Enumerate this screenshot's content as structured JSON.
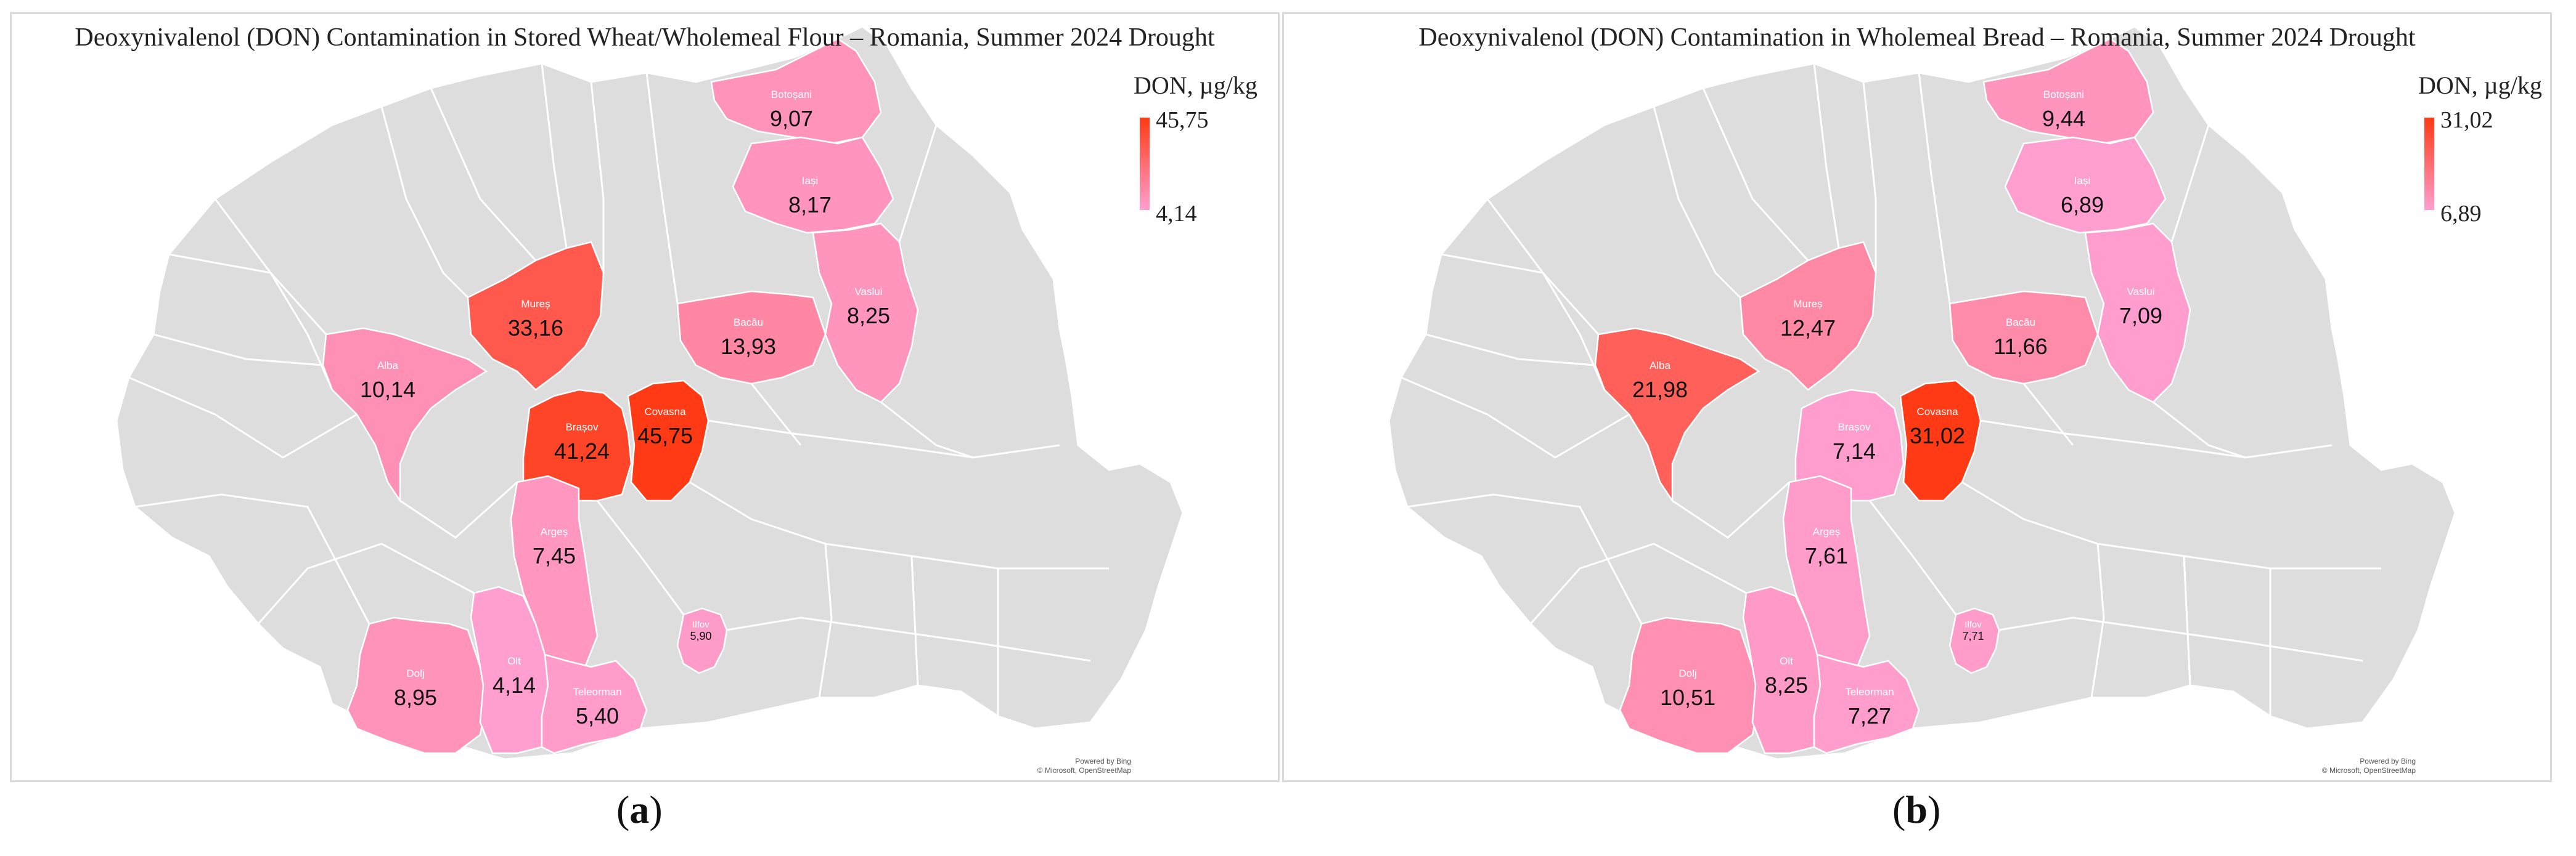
{
  "panels": [
    {
      "title": "Deoxynivalenol (DON) Contamination in Stored Wheat/Wholemeal Flour – Romania, Summer 2024 Drought",
      "legend_title": "DON, µg/kg",
      "legend_max": "45,75",
      "legend_min": "4,14",
      "color_max": "#ff3a14",
      "color_min": "#ff9fd0",
      "credit_line1": "Powered by Bing",
      "credit_line2": "© Microsoft, OpenStreetMap",
      "label_letter": "a",
      "counties": [
        {
          "name": "Botoșani",
          "value": "9,07"
        },
        {
          "name": "Iași",
          "value": "8,17"
        },
        {
          "name": "Vaslui",
          "value": "8,25"
        },
        {
          "name": "Bacău",
          "value": "13,93"
        },
        {
          "name": "Mureș",
          "value": "33,16"
        },
        {
          "name": "Alba",
          "value": "10,14"
        },
        {
          "name": "Brașov",
          "value": "41,24"
        },
        {
          "name": "Covasna",
          "value": "45,75"
        },
        {
          "name": "Argeș",
          "value": "7,45"
        },
        {
          "name": "Ilfov",
          "value": "5,90"
        },
        {
          "name": "Dolj",
          "value": "8,95"
        },
        {
          "name": "Olt",
          "value": "4,14"
        },
        {
          "name": "Teleorman",
          "value": "5,40"
        }
      ]
    },
    {
      "title": "Deoxynivalenol (DON) Contamination in Wholemeal Bread – Romania, Summer 2024 Drought",
      "legend_title": "DON, µg/kg",
      "legend_max": "31,02",
      "legend_min": "6,89",
      "color_max": "#ff3a14",
      "color_min": "#ff9fd0",
      "credit_line1": "Powered by Bing",
      "credit_line2": "© Microsoft, OpenStreetMap",
      "label_letter": "b",
      "counties": [
        {
          "name": "Botoșani",
          "value": "9,44"
        },
        {
          "name": "Iași",
          "value": "6,89"
        },
        {
          "name": "Vaslui",
          "value": "7,09"
        },
        {
          "name": "Bacău",
          "value": "11,66"
        },
        {
          "name": "Mureș",
          "value": "12,47"
        },
        {
          "name": "Alba",
          "value": "21,98"
        },
        {
          "name": "Brașov",
          "value": "7,14"
        },
        {
          "name": "Covasna",
          "value": "31,02"
        },
        {
          "name": "Argeș",
          "value": "7,61"
        },
        {
          "name": "Ilfov",
          "value": "7,71"
        },
        {
          "name": "Dolj",
          "value": "10,51"
        },
        {
          "name": "Olt",
          "value": "8,25"
        },
        {
          "name": "Teleorman",
          "value": "7,27"
        }
      ]
    }
  ]
}
